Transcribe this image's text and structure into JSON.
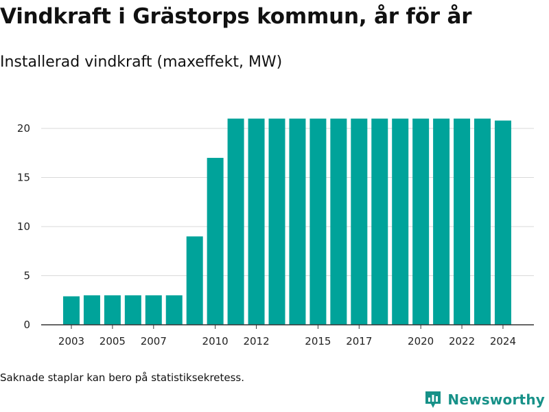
{
  "title": "Vindkraft i Grästorps kommun, år för år",
  "subtitle": "Installerad vindkraft (maxeffekt, MW)",
  "footnote": "Saknade staplar kan bero på statistiksekretess.",
  "brand": {
    "name": "Newsworthy",
    "icon": "newsworthy-logo-icon",
    "color": "#179188"
  },
  "colors": {
    "bar": "#00a39a",
    "grid": "#d9d9d9",
    "axis": "#333333"
  },
  "chart_data": {
    "type": "bar",
    "title": "Vindkraft i Grästorps kommun, år för år",
    "subtitle": "Installerad vindkraft (maxeffekt, MW)",
    "categories": [
      "2003",
      "2004",
      "2005",
      "2006",
      "2007",
      "2008",
      "2009",
      "2010",
      "2011",
      "2012",
      "2013",
      "2014",
      "2015",
      "2016",
      "2017",
      "2018",
      "2019",
      "2020",
      "2021",
      "2022",
      "2023",
      "2024"
    ],
    "values": [
      2.9,
      3.0,
      3.0,
      3.0,
      3.0,
      3.0,
      9.0,
      17.0,
      21.0,
      21.0,
      21.0,
      21.0,
      21.0,
      21.0,
      21.0,
      21.0,
      21.0,
      21.0,
      21.0,
      21.0,
      21.0,
      20.8
    ],
    "x_tick_labels": [
      "2003",
      "2005",
      "2007",
      "2010",
      "2012",
      "2015",
      "2017",
      "2020",
      "2022",
      "2024"
    ],
    "y_ticks": [
      0,
      5,
      10,
      15,
      20
    ],
    "ylim": [
      0,
      22
    ],
    "xlabel": "",
    "ylabel": "",
    "grid": true,
    "legend": "none"
  }
}
